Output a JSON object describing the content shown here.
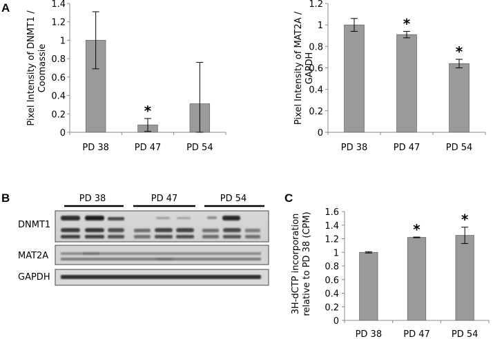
{
  "panel_labels": {
    "a": "A",
    "b": "B",
    "c": "C"
  },
  "colors": {
    "bar": "#9a9a9a",
    "axis": "#888888",
    "ink": "#000000"
  },
  "chart_data": [
    {
      "id": "dnmt1",
      "type": "bar",
      "categories": [
        "PD 38",
        "PD 47",
        "PD 54"
      ],
      "values": [
        1.0,
        0.08,
        0.31
      ],
      "errors": [
        0.31,
        0.07,
        0.45
      ],
      "significant": [
        false,
        true,
        false
      ],
      "ylabel_lines": [
        "Pixel Intensity of DNMT1 /",
        "Coomassie"
      ],
      "ylim": [
        0,
        1.4
      ],
      "yticks": [
        0,
        0.2,
        0.4,
        0.6,
        0.8,
        1,
        1.2,
        1.4
      ],
      "ytick_labels": [
        "0",
        "0.2",
        "0.4",
        "0.6",
        "0.8",
        "1",
        "1.2",
        "1.4"
      ]
    },
    {
      "id": "mat2a",
      "type": "bar",
      "categories": [
        "PD 38",
        "PD 47",
        "PD 54"
      ],
      "values": [
        1.0,
        0.91,
        0.64
      ],
      "errors": [
        0.06,
        0.03,
        0.04
      ],
      "significant": [
        false,
        true,
        true
      ],
      "ylabel_lines": [
        "Pixel Intensity of MAT2A /",
        "GAPDH"
      ],
      "ylim": [
        0,
        1.2
      ],
      "yticks": [
        0,
        0.2,
        0.4,
        0.6,
        0.8,
        1,
        1.2
      ],
      "ytick_labels": [
        "0",
        "0.2",
        "0.4",
        "0.6",
        "0.8",
        "1",
        "1.2"
      ]
    },
    {
      "id": "incorporation",
      "type": "bar",
      "categories": [
        "PD 38",
        "PD 47",
        "PD 54"
      ],
      "values": [
        1.0,
        1.22,
        1.25
      ],
      "errors": [
        0.01,
        0.005,
        0.12
      ],
      "significant": [
        false,
        true,
        true
      ],
      "ylabel_lines": [
        "3H-dCTP incorporation",
        "relative to PD 38 (CPM)"
      ],
      "ylim": [
        0,
        1.6
      ],
      "yticks": [
        0,
        0.2,
        0.4,
        0.6,
        0.8,
        1,
        1.2,
        1.4,
        1.6
      ],
      "ytick_labels": [
        "0",
        "0.2",
        "0.4",
        "0.6",
        "0.8",
        "1",
        "1.2",
        "1.4",
        "1.6"
      ]
    }
  ],
  "blot": {
    "groups": [
      "PD 38",
      "PD 47",
      "PD 54"
    ],
    "rows": [
      "DNMT1",
      "MAT2A",
      "GAPDH"
    ]
  },
  "significance_marker": "*"
}
